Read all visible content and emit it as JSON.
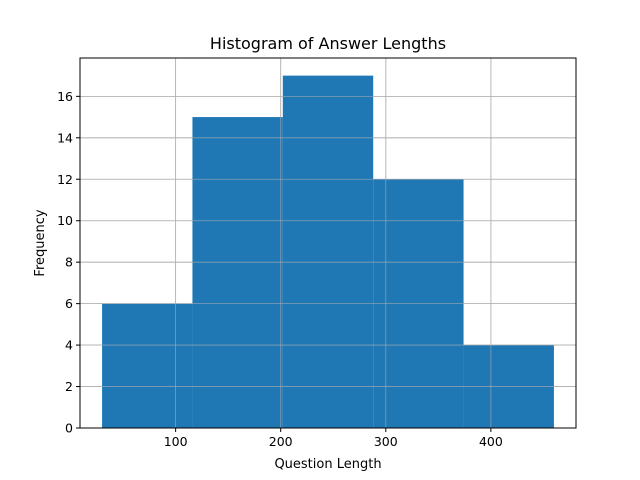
{
  "chart_data": {
    "type": "bar",
    "title": "Histogram of Answer Lengths",
    "xlabel": "Question Length",
    "ylabel": "Frequency",
    "xlim": [
      9,
      481
    ],
    "ylim": [
      0,
      17.85
    ],
    "grid": true,
    "bar_color": "#1f77b4",
    "bins": [
      {
        "x0": 30,
        "x1": 116,
        "value": 6
      },
      {
        "x0": 116,
        "x1": 202,
        "value": 15
      },
      {
        "x0": 202,
        "x1": 288,
        "value": 17
      },
      {
        "x0": 288,
        "x1": 374,
        "value": 12
      },
      {
        "x0": 374,
        "x1": 460,
        "value": 4
      }
    ],
    "x_ticks": [
      100,
      200,
      300,
      400
    ],
    "x_tick_labels": [
      "100",
      "200",
      "300",
      "400"
    ],
    "y_ticks": [
      0,
      2,
      4,
      6,
      8,
      10,
      12,
      14,
      16
    ],
    "y_tick_labels": [
      "0",
      "2",
      "4",
      "6",
      "8",
      "10",
      "12",
      "14",
      "16"
    ]
  }
}
